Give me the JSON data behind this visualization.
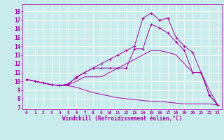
{
  "xlabel": "Windchill (Refroidissement éolien,°C)",
  "xlim": [
    -0.5,
    23.5
  ],
  "ylim": [
    6.8,
    18.8
  ],
  "yticks": [
    7,
    8,
    9,
    10,
    11,
    12,
    13,
    14,
    15,
    16,
    17,
    18
  ],
  "xticks": [
    0,
    1,
    2,
    3,
    4,
    5,
    6,
    7,
    8,
    9,
    10,
    11,
    12,
    13,
    14,
    15,
    16,
    17,
    18,
    19,
    20,
    21,
    22,
    23
  ],
  "background_color": "#c8ecec",
  "grid_color": "#ffffff",
  "line_color": "#aa00aa",
  "lines": [
    {
      "x": [
        0,
        1,
        2,
        3,
        4,
        5,
        6,
        7,
        8,
        9,
        10,
        11,
        12,
        13,
        14,
        15,
        16,
        17,
        18,
        19,
        20,
        21,
        22,
        23
      ],
      "y": [
        10.2,
        10.0,
        9.8,
        9.6,
        9.5,
        9.6,
        10.5,
        11.0,
        11.5,
        12.0,
        12.5,
        13.0,
        13.5,
        14.0,
        17.2,
        17.8,
        17.0,
        17.2,
        15.0,
        14.0,
        13.3,
        11.0,
        8.4,
        7.3
      ],
      "marker": "+"
    },
    {
      "x": [
        0,
        1,
        2,
        3,
        4,
        5,
        6,
        7,
        8,
        9,
        10,
        11,
        12,
        13,
        14,
        15,
        16,
        17,
        18,
        19,
        20,
        21,
        22,
        23
      ],
      "y": [
        10.2,
        10.0,
        9.8,
        9.6,
        9.5,
        9.7,
        10.4,
        11.0,
        11.5,
        11.5,
        11.5,
        11.5,
        11.5,
        13.7,
        13.7,
        16.5,
        16.1,
        15.5,
        14.5,
        13.5,
        11.0,
        11.0,
        8.4,
        7.3
      ],
      "marker": "+"
    },
    {
      "x": [
        0,
        1,
        2,
        3,
        4,
        5,
        6,
        7,
        8,
        9,
        10,
        11,
        12,
        13,
        14,
        15,
        16,
        17,
        18,
        19,
        20,
        21,
        22,
        23
      ],
      "y": [
        10.2,
        10.0,
        9.8,
        9.6,
        9.5,
        9.6,
        10.0,
        10.5,
        10.5,
        10.5,
        11.0,
        11.5,
        12.0,
        12.5,
        13.0,
        13.5,
        13.5,
        13.3,
        13.0,
        12.0,
        11.0,
        11.0,
        9.0,
        7.3
      ],
      "marker": null
    },
    {
      "x": [
        0,
        1,
        2,
        3,
        4,
        5,
        6,
        7,
        8,
        9,
        10,
        11,
        12,
        13,
        14,
        15,
        16,
        17,
        18,
        19,
        20,
        21,
        22,
        23
      ],
      "y": [
        10.2,
        10.0,
        9.8,
        9.6,
        9.5,
        9.5,
        9.3,
        9.0,
        8.7,
        8.5,
        8.3,
        8.1,
        8.0,
        7.9,
        7.8,
        7.7,
        7.7,
        7.6,
        7.5,
        7.4,
        7.4,
        7.4,
        7.4,
        7.3
      ],
      "marker": null
    }
  ],
  "ytick_fontsize": 5.5,
  "xtick_fontsize": 4.5,
  "xlabel_fontsize": 5.5
}
